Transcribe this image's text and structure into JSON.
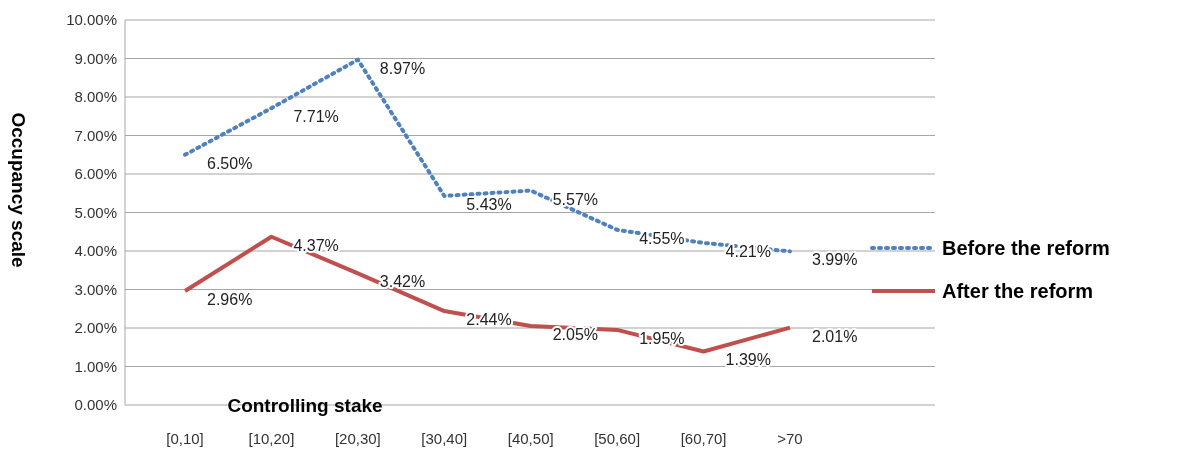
{
  "chart_data": {
    "type": "line",
    "xlabel": "Controlling stake",
    "ylabel": "Occupancy scale",
    "categories": [
      "[0,10]",
      "[10,20]",
      "[20,30]",
      "[30,40]",
      "[40,50]",
      "[50,60]",
      "[60,70]",
      ">70"
    ],
    "series": [
      {
        "name": "Before the reform",
        "color": "#4f81bd",
        "line_style": "dotted",
        "values": [
          6.5,
          7.71,
          8.97,
          5.43,
          5.57,
          4.55,
          4.21,
          3.99
        ],
        "value_labels": [
          "6.50%",
          "7.71%",
          "8.97%",
          "5.43%",
          "5.57%",
          "4.55%",
          "4.21%",
          "3.99%"
        ]
      },
      {
        "name": "After the reform",
        "color": "#c0504d",
        "line_style": "solid",
        "values": [
          2.96,
          4.37,
          3.42,
          2.44,
          2.05,
          1.95,
          1.39,
          2.01
        ],
        "value_labels": [
          "2.96%",
          "4.37%",
          "3.42%",
          "2.44%",
          "2.05%",
          "1.95%",
          "1.39%",
          "2.01%"
        ]
      }
    ],
    "ylim": [
      0,
      10
    ],
    "yticks": [
      {
        "value": 0,
        "label": "0.00%"
      },
      {
        "value": 1,
        "label": "1.00%"
      },
      {
        "value": 2,
        "label": "2.00%"
      },
      {
        "value": 3,
        "label": "3.00%"
      },
      {
        "value": 4,
        "label": "4.00%"
      },
      {
        "value": 5,
        "label": "5.00%"
      },
      {
        "value": 6,
        "label": "6.00%"
      },
      {
        "value": 7,
        "label": "7.00%"
      },
      {
        "value": 8,
        "label": "8.00%"
      },
      {
        "value": 9,
        "label": "9.00%"
      },
      {
        "value": 10,
        "label": "10.00%"
      }
    ],
    "grid": "y",
    "legend": "right",
    "marker": "none"
  }
}
